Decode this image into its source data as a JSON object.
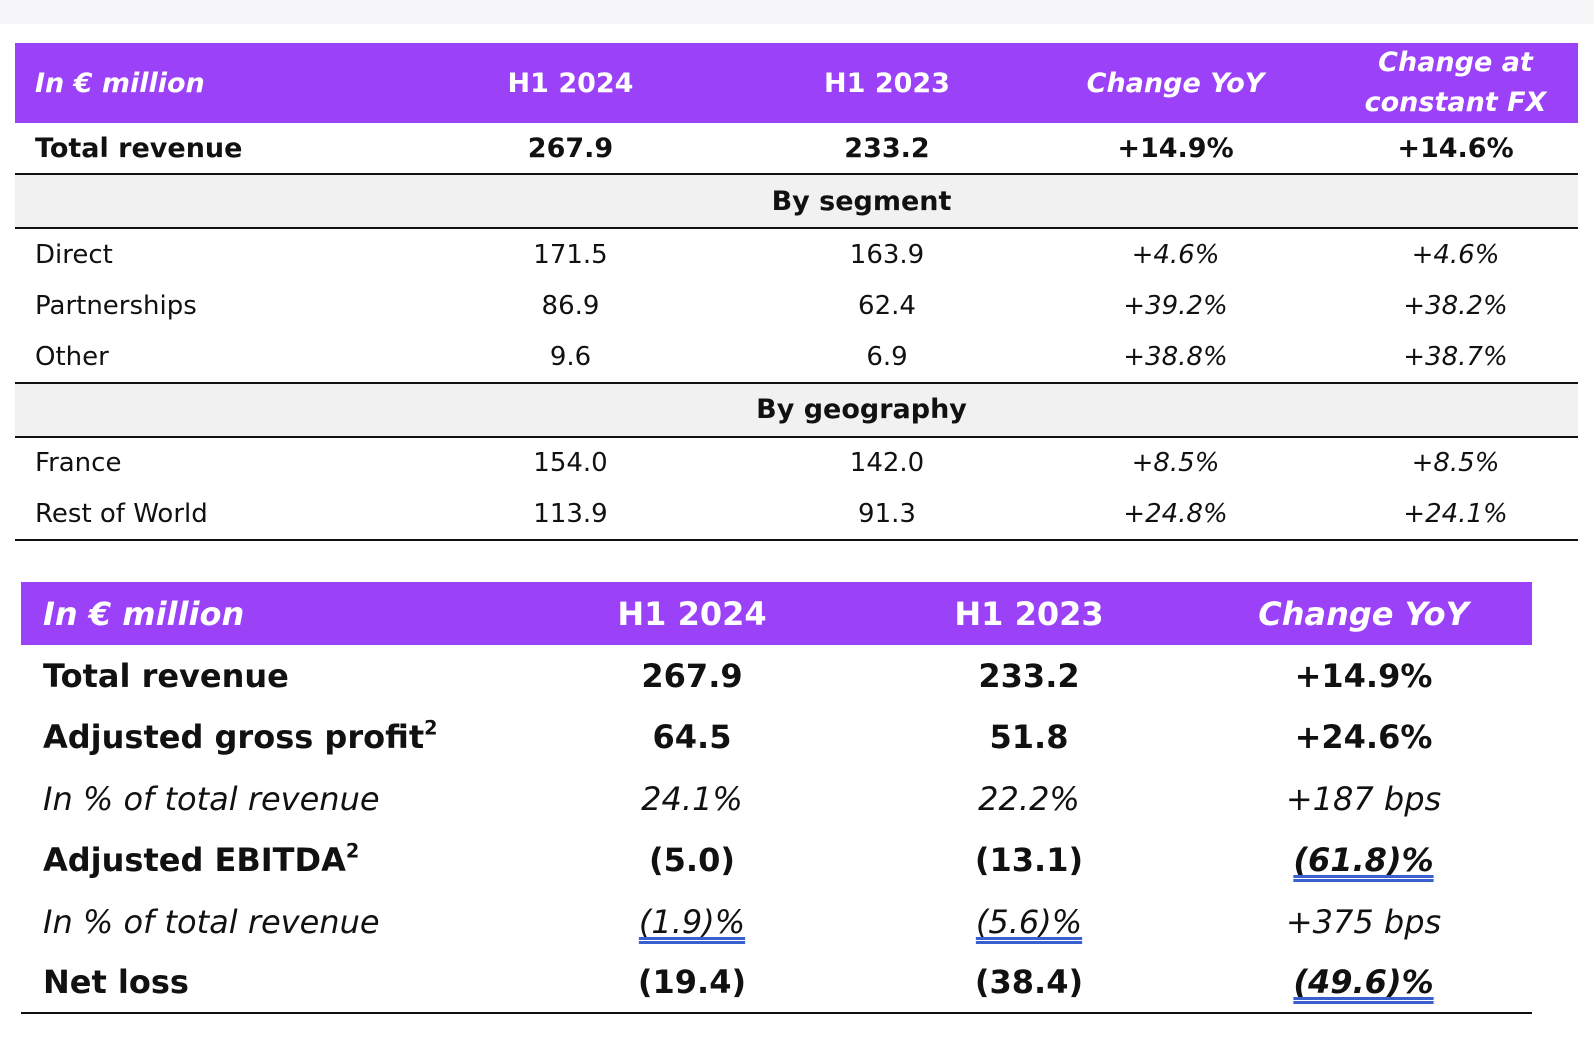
{
  "table1": {
    "header": {
      "label": "In € million",
      "col1": "H1 2024",
      "col2": "H1 2023",
      "col3": "Change YoY",
      "col4_line1": "Change at",
      "col4_line2": "constant FX"
    },
    "total": {
      "label": "Total revenue",
      "v1": "267.9",
      "v2": "233.2",
      "v3": "+14.9%",
      "v4": "+14.6%"
    },
    "segment_title": "By segment",
    "segments": [
      {
        "label": "Direct",
        "v1": "171.5",
        "v2": "163.9",
        "v3": "+4.6%",
        "v4": "+4.6%"
      },
      {
        "label": "Partnerships",
        "v1": "86.9",
        "v2": "62.4",
        "v3": "+39.2%",
        "v4": "+38.2%"
      },
      {
        "label": "Other",
        "v1": "9.6",
        "v2": "6.9",
        "v3": "+38.8%",
        "v4": "+38.7%"
      }
    ],
    "geography_title": "By geography",
    "geographies": [
      {
        "label": "France",
        "v1": "154.0",
        "v2": "142.0",
        "v3": "+8.5%",
        "v4": "+8.5%"
      },
      {
        "label": "Rest of World",
        "v1": "113.9",
        "v2": "91.3",
        "v3": "+24.8%",
        "v4": "+24.1%"
      }
    ]
  },
  "table2": {
    "header": {
      "label": "In € million",
      "col1": "H1 2024",
      "col2": "H1 2023",
      "col3": "Change YoY"
    },
    "rows": [
      {
        "label": "Total revenue",
        "sup": "",
        "v1": "267.9",
        "v2": "233.2",
        "v3": "+14.9%"
      },
      {
        "label": "Adjusted gross profit",
        "sup": "2",
        "v1": "64.5",
        "v2": "51.8",
        "v3": "+24.6%"
      },
      {
        "label": "In % of total revenue",
        "sup": "",
        "v1": "24.1%",
        "v2": "22.2%",
        "v3": "+187 bps"
      },
      {
        "label": "Adjusted EBITDA",
        "sup": "2",
        "v1": "(5.0)",
        "v2": "(13.1)",
        "v3": "(61.8)%"
      },
      {
        "label": "In % of total revenue",
        "sup": "",
        "v1": "(1.9)%",
        "v2": "(5.6)%",
        "v3": "+375 bps"
      },
      {
        "label": "Net loss",
        "sup": "",
        "v1": "(19.4)",
        "v2": "(38.4)",
        "v3": "(49.6)%"
      }
    ]
  },
  "colors": {
    "header_bg": "#9b41f7",
    "section_bg": "#f1f1f1",
    "underline": "#3a5fcf"
  }
}
